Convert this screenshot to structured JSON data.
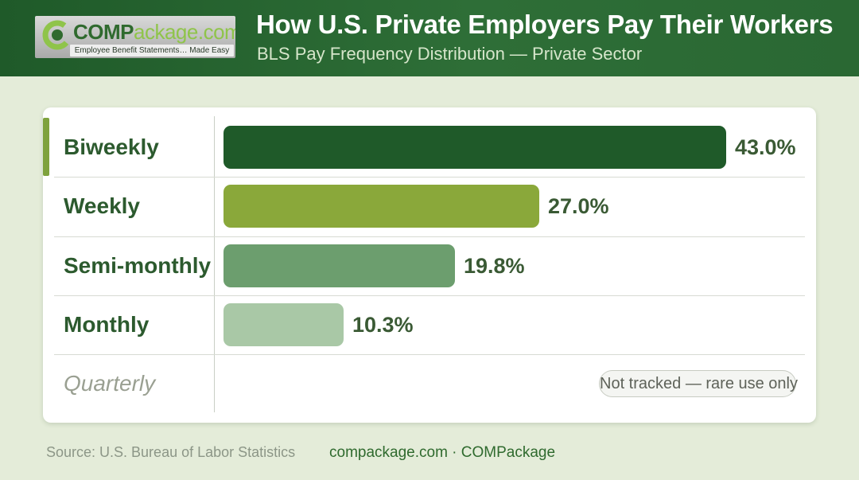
{
  "header": {
    "title": "How U.S. Private Employers Pay Their Workers",
    "subtitle": "BLS Pay Frequency Distribution — Private Sector"
  },
  "logo": {
    "word_bold": "COMP",
    "word_light": "ackage.com",
    "tagline": "Employee Benefit Statements… Made Easy"
  },
  "colors": {
    "header_bg": "#2a6833",
    "biweekly": "#1f5a29",
    "weekly": "#8aa83a",
    "semi_monthly": "#6c9e6e",
    "monthly": "#a9c8a6",
    "background": "#e4ecd9"
  },
  "chart_data": {
    "type": "bar",
    "orientation": "horizontal",
    "title": "How U.S. Private Employers Pay Their Workers",
    "subtitle": "BLS Pay Frequency Distribution — Private Sector",
    "categories": [
      "Biweekly",
      "Weekly",
      "Semi-monthly",
      "Monthly",
      "Quarterly"
    ],
    "values": [
      43.0,
      27.0,
      19.8,
      10.3,
      null
    ],
    "value_labels": [
      "43.0%",
      "27.0%",
      "19.8%",
      "10.3%",
      ""
    ],
    "xlim": [
      0,
      43.0
    ],
    "grid": false,
    "annotations": [
      "Not tracked — rare use only"
    ],
    "highlight": "Biweekly"
  },
  "footer": {
    "source": "Source: U.S. Bureau of Labor Statistics",
    "site": "compackage.com · COMPackage"
  }
}
